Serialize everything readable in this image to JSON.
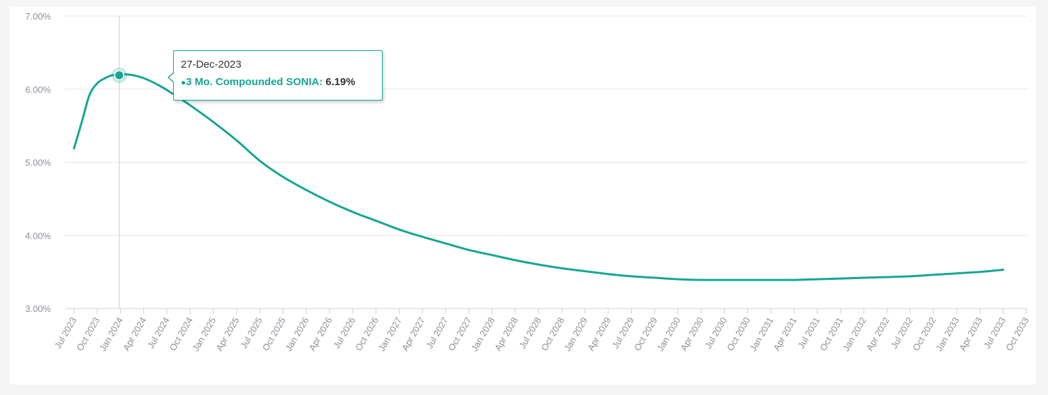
{
  "colors": {
    "series": "#16a596",
    "grid": "#e6e6e6",
    "axis": "#c8d0d8",
    "tick_label": "#8a8f98"
  },
  "tooltip": {
    "date": "27-Dec-2023",
    "series_label": "3 Mo. Compounded SONIA",
    "separator": ":",
    "value": "6.19%"
  },
  "chart_data": {
    "type": "line",
    "title": "",
    "xlabel": "",
    "ylabel": "",
    "ylim": [
      3.0,
      7.0
    ],
    "yticks": [
      3.0,
      4.0,
      5.0,
      6.0,
      7.0
    ],
    "ytick_labels": [
      "3.00%",
      "4.00%",
      "5.00%",
      "6.00%",
      "7.00%"
    ],
    "xticks": [
      "Jul 2023",
      "Oct 2023",
      "Jan 2024",
      "Apr 2024",
      "Jul 2024",
      "Oct 2024",
      "Jan 2025",
      "Apr 2025",
      "Jul 2025",
      "Oct 2025",
      "Jan 2026",
      "Apr 2026",
      "Jul 2026",
      "Oct 2026",
      "Jan 2027",
      "Apr 2027",
      "Jul 2027",
      "Oct 2027",
      "Jan 2028",
      "Apr 2028",
      "Jul 2028",
      "Oct 2028",
      "Jan 2029",
      "Apr 2029",
      "Jul 2029",
      "Oct 2029",
      "Jan 2030",
      "Apr 2030",
      "Jul 2030",
      "Oct 2030",
      "Jan 2031",
      "Apr 2031",
      "Jul 2031",
      "Oct 2031",
      "Jan 2032",
      "Apr 2032",
      "Jul 2032",
      "Oct 2032",
      "Jan 2033",
      "Apr 2033",
      "Jul 2033",
      "Oct 2033"
    ],
    "grid": true,
    "legend": "none",
    "series": [
      {
        "name": "3 Mo. Compounded SONIA",
        "points": [
          [
            "Jul 2023",
            5.19
          ],
          [
            "Aug 2023",
            5.55
          ],
          [
            "Sep 2023",
            5.92
          ],
          [
            "Oct 2023",
            6.08
          ],
          [
            "Nov 2023",
            6.15
          ],
          [
            "Dec 2023",
            6.19
          ],
          [
            "Feb 2024",
            6.2
          ],
          [
            "Apr 2024",
            6.15
          ],
          [
            "Jun 2024",
            6.05
          ],
          [
            "Aug 2024",
            5.92
          ],
          [
            "Oct 2024",
            5.78
          ],
          [
            "Jan 2025",
            5.55
          ],
          [
            "Apr 2025",
            5.3
          ],
          [
            "Jul 2025",
            5.02
          ],
          [
            "Oct 2025",
            4.8
          ],
          [
            "Jan 2026",
            4.62
          ],
          [
            "Apr 2026",
            4.46
          ],
          [
            "Jul 2026",
            4.32
          ],
          [
            "Oct 2026",
            4.2
          ],
          [
            "Jan 2027",
            4.08
          ],
          [
            "Apr 2027",
            3.98
          ],
          [
            "Jul 2027",
            3.89
          ],
          [
            "Oct 2027",
            3.8
          ],
          [
            "Jan 2028",
            3.73
          ],
          [
            "Apr 2028",
            3.66
          ],
          [
            "Jul 2028",
            3.6
          ],
          [
            "Oct 2028",
            3.55
          ],
          [
            "Jan 2029",
            3.51
          ],
          [
            "Apr 2029",
            3.47
          ],
          [
            "Jul 2029",
            3.44
          ],
          [
            "Oct 2029",
            3.42
          ],
          [
            "Jan 2030",
            3.4
          ],
          [
            "Apr 2030",
            3.39
          ],
          [
            "Jul 2030",
            3.39
          ],
          [
            "Oct 2030",
            3.39
          ],
          [
            "Jan 2031",
            3.39
          ],
          [
            "Apr 2031",
            3.39
          ],
          [
            "Jul 2031",
            3.4
          ],
          [
            "Oct 2031",
            3.41
          ],
          [
            "Jan 2032",
            3.42
          ],
          [
            "Apr 2032",
            3.43
          ],
          [
            "Jul 2032",
            3.44
          ],
          [
            "Oct 2032",
            3.46
          ],
          [
            "Jan 2033",
            3.48
          ],
          [
            "Apr 2033",
            3.5
          ],
          [
            "Jul 2033",
            3.53
          ]
        ]
      }
    ],
    "highlight": {
      "x": "27-Dec-2023",
      "x_month": "Dec 2023",
      "y": 6.19
    }
  }
}
